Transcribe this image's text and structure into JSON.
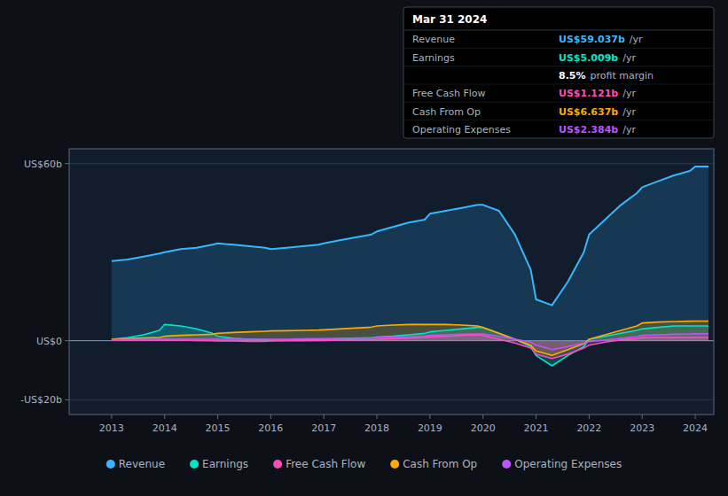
{
  "chart_data": {
    "type": "area",
    "x": [
      2013.0,
      2013.3,
      2013.6,
      2013.9,
      2014.0,
      2014.3,
      2014.6,
      2014.9,
      2015.0,
      2015.3,
      2015.6,
      2015.9,
      2016.0,
      2016.3,
      2016.6,
      2016.9,
      2017.0,
      2017.3,
      2017.6,
      2017.9,
      2018.0,
      2018.3,
      2018.6,
      2018.9,
      2019.0,
      2019.3,
      2019.6,
      2019.9,
      2020.0,
      2020.3,
      2020.6,
      2020.9,
      2021.0,
      2021.3,
      2021.6,
      2021.9,
      2022.0,
      2022.3,
      2022.6,
      2022.9,
      2023.0,
      2023.3,
      2023.6,
      2023.9,
      2024.0,
      2024.25
    ],
    "series": [
      {
        "name": "Revenue",
        "color": "#38b6ff",
        "values": [
          27,
          27.5,
          28.5,
          29.5,
          30,
          31,
          31.5,
          32.5,
          33,
          32.5,
          32,
          31.5,
          31,
          31.5,
          32,
          32.5,
          33,
          34,
          35,
          36,
          37,
          38.5,
          40,
          41,
          43,
          44,
          45,
          46,
          46,
          44,
          36,
          24,
          14,
          12,
          20,
          30,
          36,
          41,
          46,
          50,
          52,
          54,
          56,
          57.5,
          59,
          59
        ]
      },
      {
        "name": "Earnings",
        "color": "#00e5cc",
        "values": [
          0.5,
          1.0,
          2.0,
          3.5,
          5.5,
          5.0,
          4.0,
          2.5,
          1.5,
          0.8,
          0.5,
          0.3,
          0.2,
          0.2,
          0.3,
          0.4,
          0.5,
          0.6,
          0.8,
          1.0,
          1.2,
          1.5,
          2.0,
          2.5,
          3.0,
          3.5,
          4.0,
          4.5,
          4.5,
          2.5,
          0.5,
          -2.0,
          -5.0,
          -8.5,
          -5.0,
          -2.0,
          0.5,
          1.5,
          2.5,
          3.5,
          4.0,
          4.5,
          5.0,
          5.0,
          5.0,
          5.009
        ]
      },
      {
        "name": "Free Cash Flow",
        "color": "#ff4db8",
        "values": [
          0.2,
          0.2,
          0.2,
          0.2,
          0.3,
          0.2,
          0.1,
          0.0,
          -0.1,
          -0.1,
          -0.2,
          -0.2,
          -0.1,
          0.0,
          0.0,
          0.1,
          0.1,
          0.2,
          0.3,
          0.4,
          0.5,
          0.7,
          0.9,
          1.1,
          1.3,
          1.5,
          1.8,
          2.0,
          1.8,
          0.5,
          -0.8,
          -2.5,
          -4.5,
          -6.0,
          -4.5,
          -2.5,
          -1.5,
          -0.5,
          0.3,
          0.7,
          1.0,
          1.1,
          1.1,
          1.1,
          1.121,
          1.121
        ]
      },
      {
        "name": "Cash From Op",
        "color": "#ffaa00",
        "values": [
          0.5,
          0.7,
          0.9,
          1.1,
          1.5,
          1.8,
          2.0,
          2.2,
          2.5,
          2.8,
          3.0,
          3.2,
          3.3,
          3.4,
          3.5,
          3.6,
          3.7,
          4.0,
          4.3,
          4.6,
          5.0,
          5.3,
          5.5,
          5.5,
          5.5,
          5.5,
          5.3,
          5.0,
          4.5,
          2.5,
          0.5,
          -1.5,
          -3.5,
          -5.0,
          -3.0,
          -1.0,
          0.5,
          2.0,
          3.5,
          5.0,
          6.0,
          6.3,
          6.5,
          6.6,
          6.637,
          6.637
        ]
      },
      {
        "name": "Operating Expenses",
        "color": "#bb55ff",
        "values": [
          0.3,
          0.4,
          0.4,
          0.5,
          0.5,
          0.5,
          0.5,
          0.5,
          0.5,
          0.5,
          0.5,
          0.5,
          0.5,
          0.5,
          0.6,
          0.7,
          0.7,
          0.8,
          0.9,
          1.0,
          1.1,
          1.2,
          1.4,
          1.6,
          1.8,
          2.0,
          2.2,
          2.3,
          2.3,
          1.5,
          0.5,
          -0.5,
          -1.5,
          -3.0,
          -2.0,
          -0.8,
          -0.3,
          0.2,
          0.8,
          1.4,
          1.8,
          2.0,
          2.2,
          2.3,
          2.384,
          2.384
        ]
      }
    ],
    "xlim": [
      2012.2,
      2024.35
    ],
    "xticks": [
      2013,
      2014,
      2015,
      2016,
      2017,
      2018,
      2019,
      2020,
      2021,
      2022,
      2023,
      2024
    ],
    "ylim": [
      -25,
      65
    ],
    "yticks": [
      {
        "value": -20,
        "label": "-US$20b"
      },
      {
        "value": 0,
        "label": "US$0"
      },
      {
        "value": 60,
        "label": "US$60b"
      }
    ],
    "grid": true,
    "legend": "bottom",
    "annotations": [
      {
        "text": "Mar 31 2024"
      },
      {
        "label": "Revenue",
        "value": "US$59.037b",
        "unit": "/yr",
        "color": "#38b6ff"
      },
      {
        "label": "Earnings",
        "value": "US$5.009b",
        "unit": "/yr",
        "color": "#00e5cc"
      },
      {
        "value": "8.5%",
        "unit": "profit margin",
        "color": "#ffffff"
      },
      {
        "label": "Free Cash Flow",
        "value": "US$1.121b",
        "unit": "/yr",
        "color": "#ff4db8"
      },
      {
        "label": "Cash From Op",
        "value": "US$6.637b",
        "unit": "/yr",
        "color": "#ffaa00"
      },
      {
        "label": "Operating Expenses",
        "value": "US$2.384b",
        "unit": "/yr",
        "color": "#bb55ff"
      }
    ]
  }
}
